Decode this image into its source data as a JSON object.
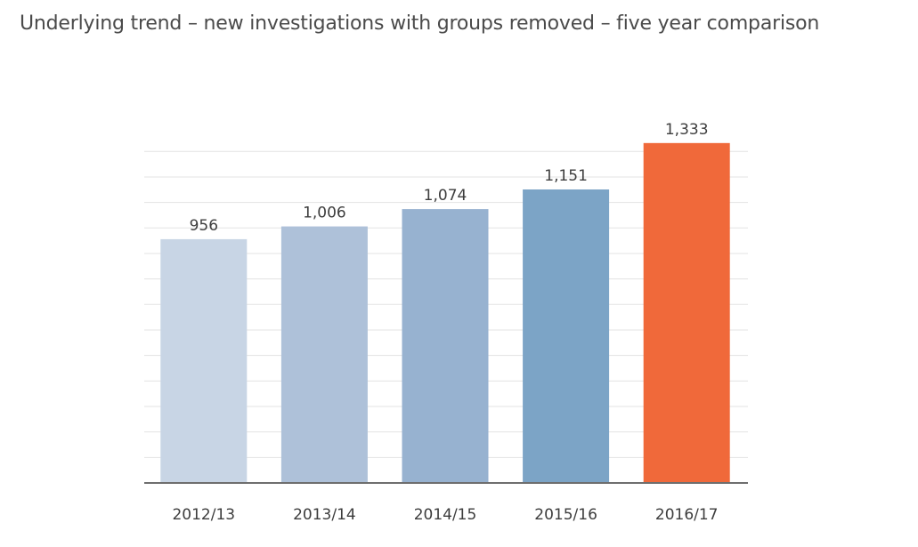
{
  "chart_data": {
    "type": "bar",
    "title": "Underlying trend – new investigations with groups removed – five year comparison",
    "xlabel": "",
    "ylabel": "",
    "categories": [
      "2012/13",
      "2013/14",
      "2014/15",
      "2015/16",
      "2016/17"
    ],
    "values": [
      956,
      1006,
      1074,
      1151,
      1333
    ],
    "value_labels": [
      "956",
      "1,006",
      "1,074",
      "1,151",
      "1,333"
    ],
    "ylim": [
      0,
      1650
    ],
    "grid": true,
    "bar_colors": [
      "#c8d5e5",
      "#aec1d9",
      "#97b2d0",
      "#7ca4c6",
      "#f0693a"
    ]
  }
}
